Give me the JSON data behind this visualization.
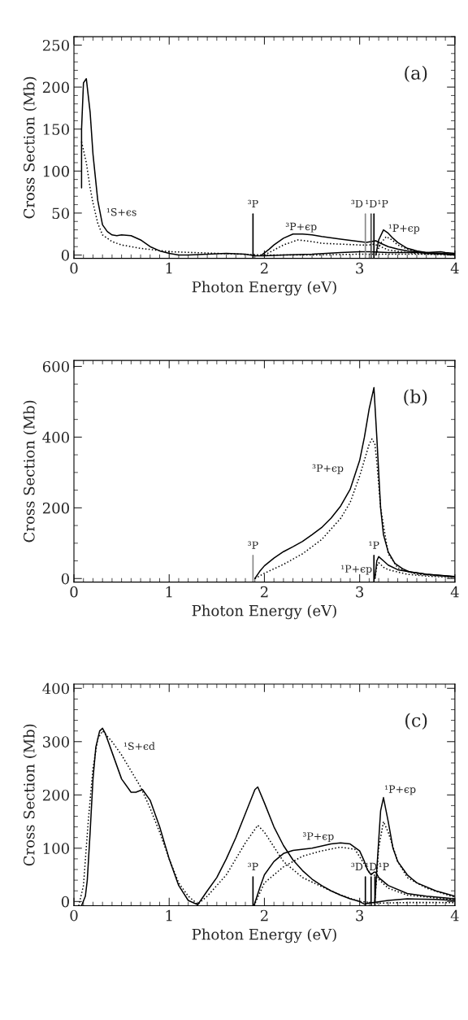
{
  "chart_data": [
    {
      "type": "line",
      "xlabel": "Photon Energy (eV)",
      "ylabel": "Cross Section (Mb)",
      "xlim": [
        0,
        4
      ],
      "ylim": [
        -4,
        260
      ],
      "xticks": [
        0,
        1,
        2,
        3,
        4
      ],
      "yticks": [
        0,
        50,
        100,
        150,
        200,
        250
      ],
      "series": [
        {
          "color": "#000000",
          "line_style": "solid",
          "x": [
            0.08,
            0.08,
            0.1,
            0.13,
            0.17,
            0.2,
            0.25,
            0.3,
            0.35,
            0.4,
            0.45,
            0.5,
            0.6,
            0.7,
            0.8,
            0.9,
            1.0,
            1.1,
            1.2,
            1.4,
            1.6,
            1.8,
            1.9,
            2.0,
            2.2,
            2.5,
            2.8,
            3.0,
            3.1,
            3.3,
            3.5,
            3.7,
            3.85,
            3.9,
            4.0
          ],
          "values": [
            80,
            150,
            205,
            210,
            170,
            120,
            65,
            36,
            28,
            24,
            23,
            24,
            23,
            18,
            10,
            5,
            2,
            0,
            0,
            1,
            2,
            1,
            -1,
            -1,
            0,
            1,
            3,
            4,
            4,
            3,
            3,
            3,
            4,
            3,
            2
          ]
        },
        {
          "color": "#000000",
          "line_style": "dotted",
          "x": [
            0.08,
            0.1,
            0.13,
            0.17,
            0.2,
            0.25,
            0.3,
            0.4,
            0.5,
            0.7,
            1.0,
            1.5,
            2.0,
            2.5,
            3.0,
            3.5,
            4.0
          ],
          "values": [
            135,
            125,
            110,
            80,
            62,
            38,
            24,
            16,
            12,
            8,
            4,
            2,
            0,
            0,
            1,
            1,
            1
          ]
        },
        {
          "color": "#000000",
          "line_style": "solid",
          "x": [
            1.97,
            2.05,
            2.1,
            2.2,
            2.3,
            2.4,
            2.5,
            2.6,
            2.8,
            3.0,
            3.07,
            3.12,
            3.17,
            3.2,
            3.3,
            3.4,
            3.5,
            3.7,
            3.9,
            4.0
          ],
          "values": [
            0,
            7,
            12,
            20,
            25,
            25,
            24,
            22,
            19,
            16,
            15,
            16,
            17,
            15,
            10,
            7,
            5,
            2,
            1,
            0
          ]
        },
        {
          "color": "#000000",
          "line_style": "dotted",
          "x": [
            2.0,
            2.1,
            2.2,
            2.35,
            2.5,
            2.6,
            2.8,
            3.0,
            3.1,
            3.15,
            3.2,
            3.3,
            3.5,
            3.7,
            4.0
          ],
          "values": [
            0,
            6,
            12,
            18,
            16,
            14,
            13,
            12,
            12,
            13,
            11,
            6,
            3,
            1,
            0
          ]
        },
        {
          "color": "#000000",
          "line_style": "solid",
          "x": [
            3.17,
            3.2,
            3.25,
            3.3,
            3.35,
            3.4,
            3.5,
            3.6,
            3.7,
            3.85,
            4.0
          ],
          "values": [
            0,
            18,
            30,
            26,
            20,
            15,
            8,
            5,
            3,
            2,
            1
          ]
        },
        {
          "color": "#000000",
          "line_style": "dotted",
          "x": [
            3.17,
            3.22,
            3.28,
            3.34,
            3.4,
            3.5,
            3.6,
            3.8,
            4.0
          ],
          "values": [
            0,
            14,
            22,
            18,
            12,
            7,
            4,
            2,
            1
          ]
        }
      ],
      "ref_lines": [
        {
          "axis": "x",
          "value": 1.88,
          "label": "³P",
          "color": "#000000"
        },
        {
          "axis": "x",
          "value": 3.06,
          "label": "³D",
          "color": "#888888"
        },
        {
          "axis": "x",
          "value": 3.12,
          "label": "¹D",
          "color": "#444444"
        },
        {
          "axis": "x",
          "value": 3.15,
          "label": "¹P",
          "color": "#000000"
        }
      ],
      "annotations": [
        "(a)",
        "¹S+ϵs",
        "³P+ϵp",
        "¹P+ϵp"
      ]
    },
    {
      "type": "line",
      "xlabel": "Photon Energy (eV)",
      "ylabel": "Cross Section (Mb)",
      "xlim": [
        0,
        4
      ],
      "ylim": [
        -10,
        617
      ],
      "xticks": [
        0,
        1,
        2,
        3,
        4
      ],
      "yticks": [
        0,
        200,
        400,
        600
      ],
      "series": [
        {
          "color": "#000000",
          "line_style": "solid",
          "x": [
            1.9,
            1.95,
            2.0,
            2.1,
            2.2,
            2.3,
            2.4,
            2.5,
            2.6,
            2.7,
            2.8,
            2.9,
            3.0,
            3.05,
            3.1,
            3.15,
            3.18,
            3.22,
            3.25,
            3.3,
            3.37,
            3.45,
            3.52,
            3.7,
            4.0
          ],
          "values": [
            0,
            20,
            36,
            58,
            76,
            90,
            105,
            124,
            144,
            171,
            205,
            252,
            334,
            400,
            480,
            540,
            400,
            200,
            124,
            75,
            43,
            28,
            19,
            12,
            5
          ]
        },
        {
          "color": "#000000",
          "line_style": "dotted",
          "x": [
            1.9,
            2.0,
            2.2,
            2.4,
            2.6,
            2.8,
            2.9,
            3.0,
            3.1,
            3.13,
            3.16,
            3.18,
            3.22,
            3.3,
            3.4,
            3.6,
            4.0
          ],
          "values": [
            0,
            15,
            40,
            70,
            110,
            170,
            215,
            290,
            380,
            395,
            380,
            330,
            200,
            70,
            30,
            12,
            4
          ]
        },
        {
          "color": "#000000",
          "line_style": "solid",
          "x": [
            3.16,
            3.18,
            3.2,
            3.25,
            3.3,
            3.4,
            3.5,
            3.7,
            4.0
          ],
          "values": [
            0,
            50,
            62,
            50,
            38,
            25,
            20,
            12,
            6
          ]
        },
        {
          "color": "#000000",
          "line_style": "dotted",
          "x": [
            3.16,
            3.18,
            3.2,
            3.25,
            3.3,
            3.5,
            3.7,
            4.0
          ],
          "values": [
            0,
            35,
            45,
            32,
            25,
            12,
            7,
            3
          ]
        }
      ],
      "ref_lines": [
        {
          "axis": "x",
          "value": 1.88,
          "label": "³P",
          "color": "#888888"
        },
        {
          "axis": "x",
          "value": 3.15,
          "label": "¹P",
          "color": "#000000"
        }
      ],
      "annotations": [
        "(b)",
        "³P+ϵp",
        "¹P+ϵp"
      ]
    },
    {
      "type": "line",
      "xlabel": "Photon Energy (eV)",
      "ylabel": "Cross Section (Mb)",
      "xlim": [
        0,
        4
      ],
      "ylim": [
        -8,
        408
      ],
      "xticks": [
        0,
        1,
        2,
        3,
        4
      ],
      "yticks": [
        0,
        100,
        200,
        300,
        400
      ],
      "series": [
        {
          "color": "#000000",
          "line_style": "solid",
          "x": [
            0.08,
            0.12,
            0.14,
            0.17,
            0.2,
            0.23,
            0.27,
            0.3,
            0.33,
            0.4,
            0.5,
            0.6,
            0.65,
            0.72,
            0.8,
            0.9,
            1.0,
            1.1,
            1.2,
            1.3,
            1.4,
            1.5,
            1.6,
            1.7,
            1.8,
            1.9,
            1.93,
            2.0,
            2.1,
            2.2,
            2.3,
            2.4,
            2.5,
            2.6,
            2.7,
            2.8,
            2.9,
            3.0,
            3.05,
            3.1,
            3.3,
            3.5,
            3.8,
            4.0
          ],
          "values": [
            -8,
            10,
            40,
            130,
            230,
            290,
            320,
            325,
            315,
            280,
            230,
            205,
            205,
            210,
            190,
            140,
            80,
            30,
            2,
            -6,
            20,
            45,
            80,
            120,
            165,
            210,
            215,
            185,
            140,
            105,
            78,
            58,
            42,
            30,
            20,
            12,
            5,
            0,
            -5,
            -3,
            2,
            5,
            4,
            2
          ]
        },
        {
          "color": "#000000",
          "line_style": "dotted",
          "x": [
            0.05,
            0.1,
            0.15,
            0.2,
            0.25,
            0.3,
            0.4,
            0.5,
            0.6,
            0.7,
            0.8,
            0.9,
            1.0,
            1.1,
            1.2,
            1.3,
            1.4,
            1.6,
            1.8,
            1.93,
            2.0,
            2.2,
            2.4,
            2.6,
            2.8,
            3.0,
            3.2,
            3.5,
            4.0
          ],
          "values": [
            -8,
            30,
            150,
            250,
            305,
            320,
            300,
            275,
            245,
            215,
            175,
            130,
            80,
            35,
            10,
            -5,
            10,
            50,
            110,
            143,
            130,
            75,
            45,
            28,
            12,
            0,
            -3,
            -2,
            -2
          ]
        },
        {
          "color": "#000000",
          "line_style": "solid",
          "x": [
            1.89,
            1.95,
            2.0,
            2.1,
            2.2,
            2.3,
            2.5,
            2.7,
            2.8,
            2.9,
            3.0,
            3.05,
            3.08,
            3.12,
            3.15,
            3.17,
            3.2,
            3.3,
            3.5,
            3.7,
            4.0
          ],
          "values": [
            -8,
            25,
            50,
            75,
            90,
            96,
            100,
            108,
            110,
            108,
            95,
            75,
            60,
            50,
            55,
            55,
            45,
            30,
            15,
            10,
            5
          ]
        },
        {
          "color": "#000000",
          "line_style": "dotted",
          "x": [
            1.89,
            2.0,
            2.2,
            2.4,
            2.6,
            2.8,
            2.95,
            3.05,
            3.1,
            3.15,
            3.3,
            3.5,
            4.0
          ],
          "values": [
            -8,
            35,
            65,
            85,
            95,
            102,
            98,
            70,
            55,
            50,
            25,
            12,
            3
          ]
        },
        {
          "color": "#000000",
          "line_style": "solid",
          "x": [
            3.16,
            3.18,
            3.22,
            3.25,
            3.3,
            3.35,
            3.4,
            3.5,
            3.6,
            3.8,
            4.0
          ],
          "values": [
            0,
            60,
            170,
            195,
            150,
            100,
            75,
            50,
            35,
            20,
            10
          ]
        },
        {
          "color": "#000000",
          "line_style": "dotted",
          "x": [
            3.16,
            3.2,
            3.25,
            3.3,
            3.4,
            3.5,
            3.7,
            4.0
          ],
          "values": [
            0,
            100,
            150,
            130,
            75,
            45,
            25,
            8
          ]
        }
      ],
      "ref_lines": [
        {
          "axis": "x",
          "value": 1.88,
          "label": "³P",
          "color": "#000000"
        },
        {
          "axis": "x",
          "value": 3.06,
          "label": "³D",
          "color": "#000000"
        },
        {
          "axis": "x",
          "value": 3.12,
          "label": "¹D",
          "color": "#000000"
        },
        {
          "axis": "x",
          "value": 3.16,
          "label": "¹P",
          "color": "#000000"
        }
      ],
      "annotations": [
        "(c)",
        "¹S+ϵd",
        "³P+ϵp",
        "¹P+ϵp"
      ]
    }
  ]
}
